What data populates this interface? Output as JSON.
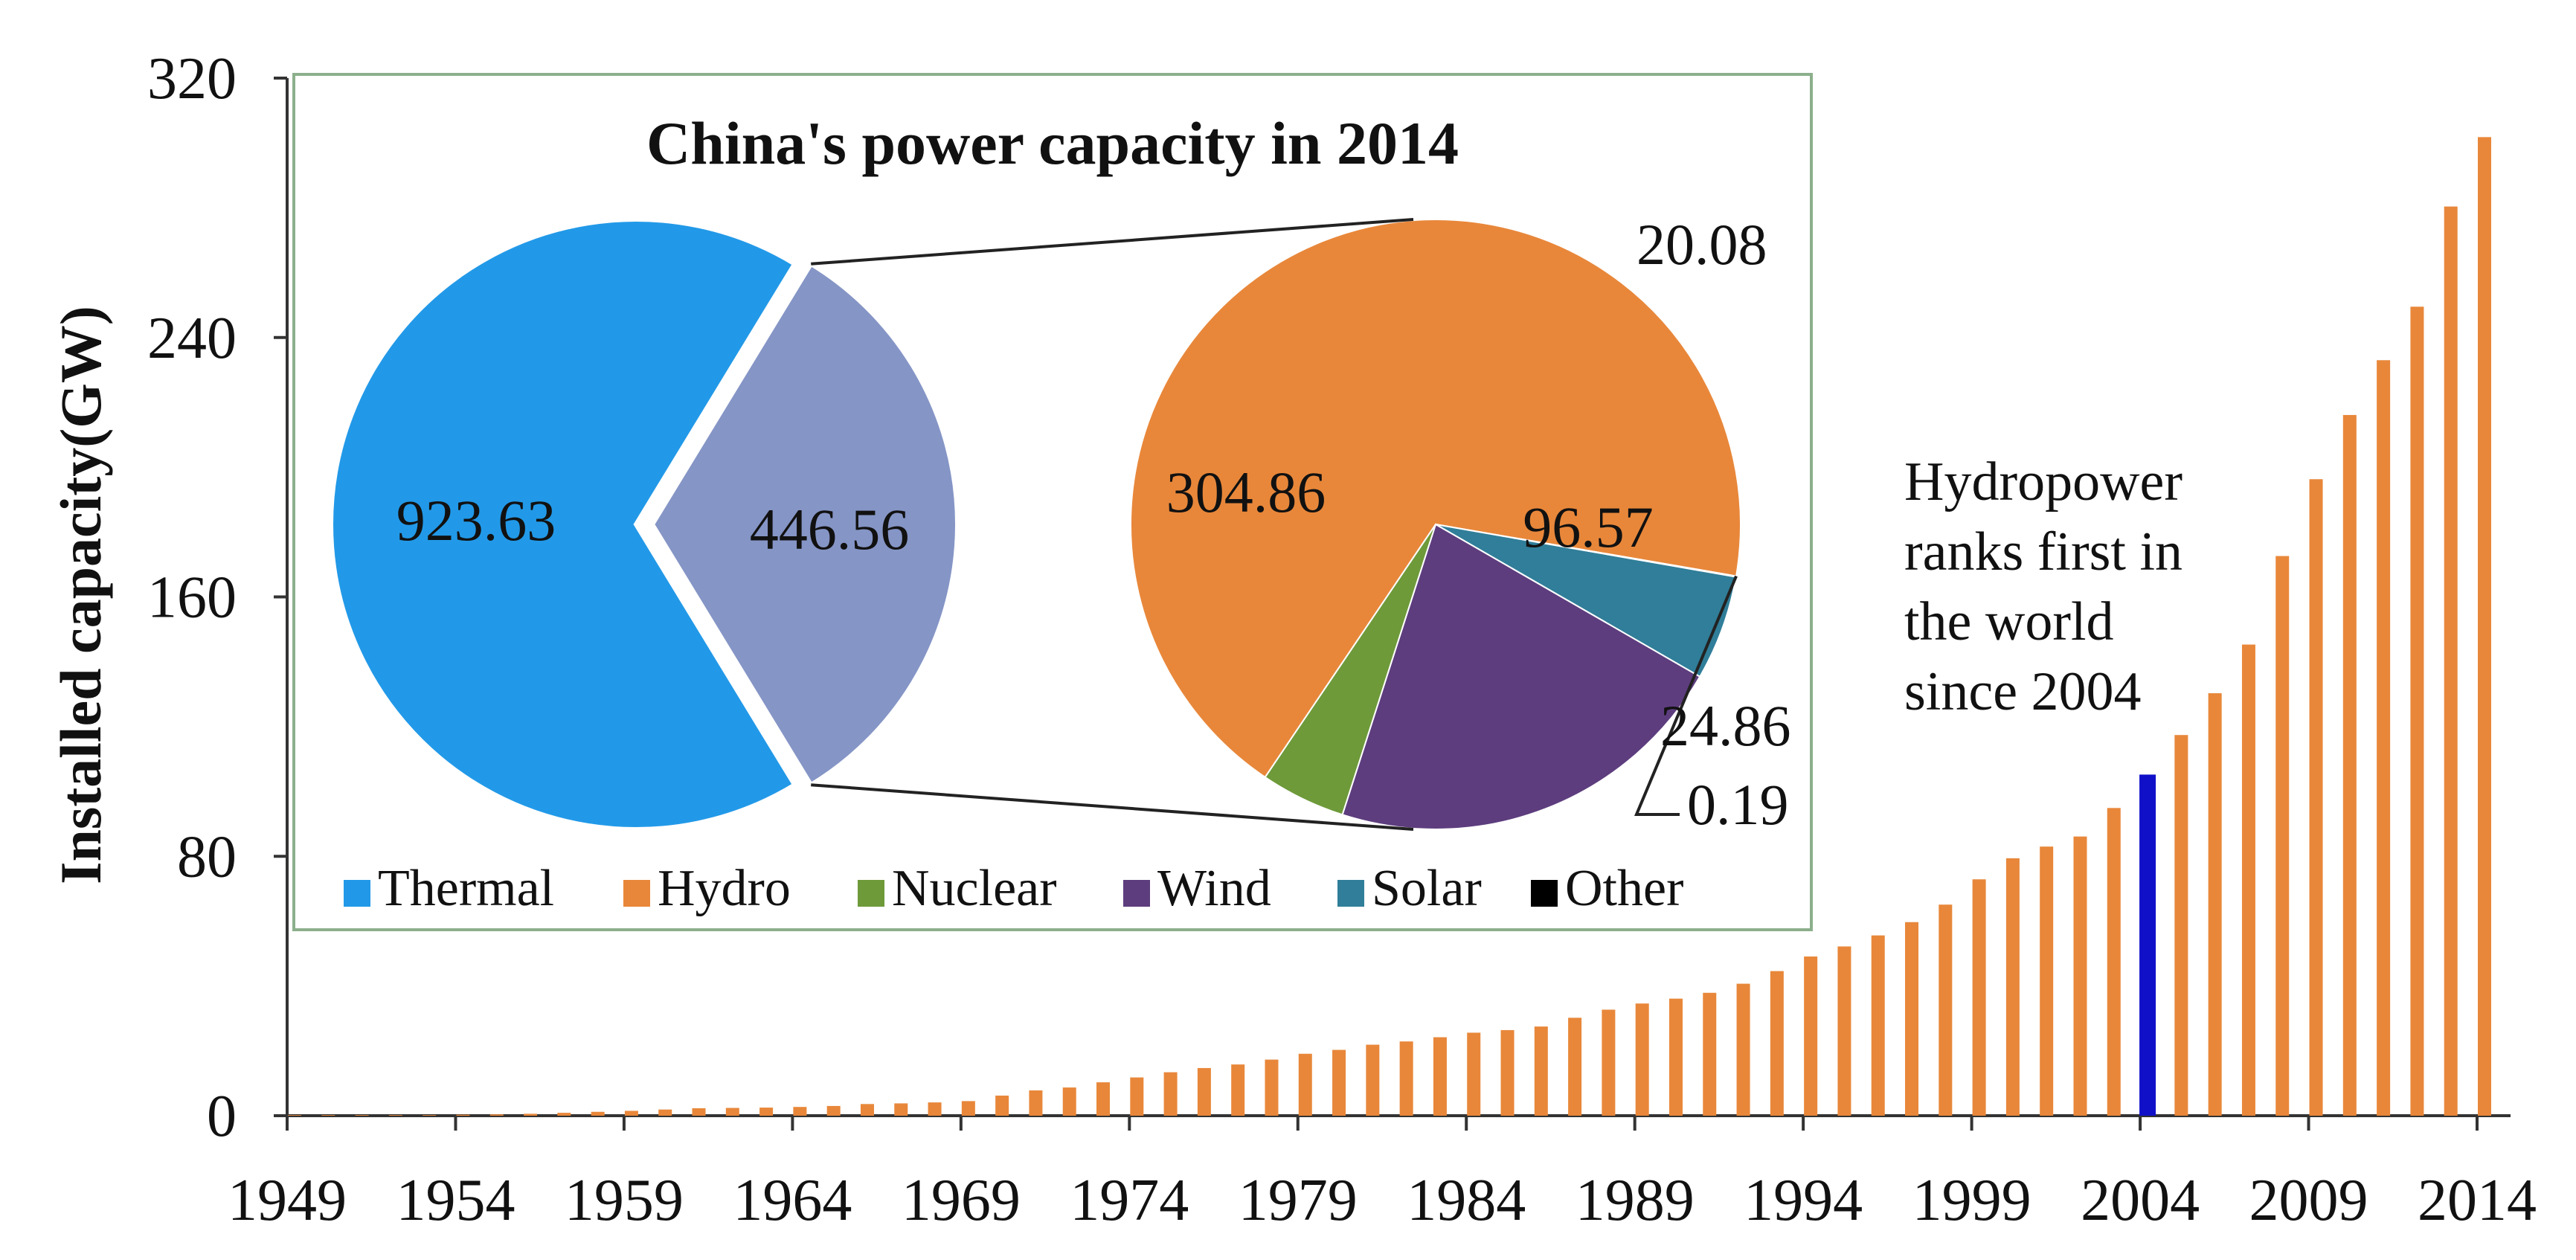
{
  "chart_data": [
    {
      "type": "bar",
      "title": "",
      "xlabel": "",
      "ylabel": "Installed capacity(GW)",
      "ylim": [
        0,
        320
      ],
      "yticks": [
        0,
        80,
        160,
        240,
        320
      ],
      "x_tick_labels": [
        "1949",
        "1954",
        "1959",
        "1964",
        "1969",
        "1974",
        "1979",
        "1984",
        "1989",
        "1994",
        "1999",
        "2004",
        "2009",
        "2014"
      ],
      "categories": [
        1949,
        1950,
        1951,
        1952,
        1953,
        1954,
        1955,
        1956,
        1957,
        1958,
        1959,
        1960,
        1961,
        1962,
        1963,
        1964,
        1965,
        1966,
        1967,
        1968,
        1969,
        1970,
        1971,
        1972,
        1973,
        1974,
        1975,
        1976,
        1977,
        1978,
        1979,
        1980,
        1981,
        1982,
        1983,
        1984,
        1985,
        1986,
        1987,
        1988,
        1989,
        1990,
        1991,
        1992,
        1993,
        1994,
        1995,
        1996,
        1997,
        1998,
        1999,
        2000,
        2001,
        2002,
        2003,
        2004,
        2005,
        2006,
        2007,
        2008,
        2009,
        2010,
        2011,
        2012,
        2013,
        2014
      ],
      "values": [
        0.2,
        0.2,
        0.2,
        0.2,
        0.2,
        0.3,
        0.4,
        0.6,
        0.9,
        1.2,
        1.5,
        1.9,
        2.3,
        2.4,
        2.5,
        2.7,
        3,
        3.6,
        3.8,
        4.1,
        4.5,
        6.2,
        7.8,
        8.7,
        10.3,
        11.8,
        13.4,
        14.7,
        15.8,
        17.3,
        19.1,
        20.3,
        21.9,
        22.9,
        24.2,
        25.6,
        26.4,
        27.5,
        30.2,
        32.7,
        34.6,
        36.1,
        37.9,
        40.7,
        44.6,
        49.1,
        52.2,
        55.6,
        59.7,
        65.1,
        72.9,
        79.4,
        83.0,
        86.1,
        94.9,
        105.2,
        117.4,
        130.3,
        145.3,
        172.6,
        196.3,
        216.1,
        233.0,
        249.5,
        280.4,
        301.8
      ],
      "highlight_category": 2004,
      "bar_color": "#E8873A",
      "highlight_color": "#1010C8",
      "annotation": [
        "Hydropower",
        "ranks first in",
        "the world",
        "since 2004"
      ]
    },
    {
      "type": "pie",
      "title": "China's power capacity in 2014",
      "slices": [
        {
          "name": "Thermal",
          "value": 923.63,
          "color": "#2299E8",
          "label": "923.63"
        },
        {
          "name": "Hydro",
          "value": 304.86,
          "color": "#E8873A",
          "label": "304.86"
        },
        {
          "name": "Nuclear",
          "value": 20.08,
          "color": "#6E9A3A",
          "label": "20.08"
        },
        {
          "name": "Wind",
          "value": 96.57,
          "color": "#5D3D7E",
          "label": "96.57"
        },
        {
          "name": "Solar",
          "value": 24.86,
          "color": "#307E99",
          "label": "24.86"
        },
        {
          "name": "Other",
          "value": 0.19,
          "color": "#000000",
          "label": "0.19"
        }
      ],
      "grouped_label": "446.56",
      "grouped_color": "#8595C6",
      "legend": [
        {
          "name": "Thermal",
          "color": "#2299E8"
        },
        {
          "name": "Hydro",
          "color": "#E8873A"
        },
        {
          "name": "Nuclear",
          "color": "#6E9A3A"
        },
        {
          "name": "Wind",
          "color": "#5D3D7E"
        },
        {
          "name": "Solar",
          "color": "#307E99"
        },
        {
          "name": "Other",
          "color": "#000000"
        }
      ],
      "legend_position": "bottom"
    }
  ]
}
